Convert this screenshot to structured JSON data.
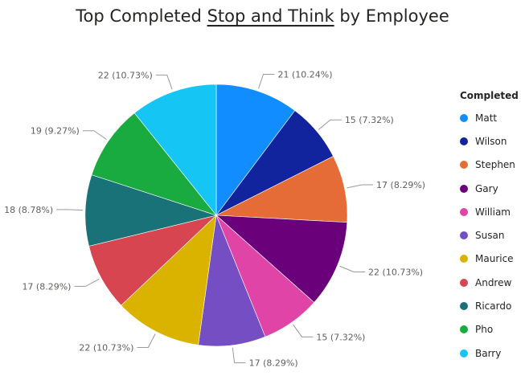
{
  "title": {
    "prefix": "Top Completed",
    "emphasis": "Stop and Think",
    "suffix": "by Employee"
  },
  "chart_data": {
    "type": "pie",
    "title": "Top Completed Stop and Think by Employee",
    "legend_title": "Completed",
    "legend_position": "right",
    "slices": [
      {
        "name": "Matt",
        "value": 21,
        "label": "21 (10.24%)",
        "color": "#118DFF"
      },
      {
        "name": "Wilson",
        "value": 15,
        "label": "15 (7.32%)",
        "color": "#12239E"
      },
      {
        "name": "Stephen",
        "value": 17,
        "label": "17 (8.29%)",
        "color": "#E66C37"
      },
      {
        "name": "Gary",
        "value": 22,
        "label": "22 (10.73%)",
        "color": "#6B007B"
      },
      {
        "name": "William",
        "value": 15,
        "label": "15 (7.32%)",
        "color": "#E044A7"
      },
      {
        "name": "Susan",
        "value": 17,
        "label": "17 (8.29%)",
        "color": "#744EC2"
      },
      {
        "name": "Maurice",
        "value": 22,
        "label": "22 (10.73%)",
        "color": "#D9B300"
      },
      {
        "name": "Andrew",
        "value": 17,
        "label": "17 (8.29%)",
        "color": "#D64550"
      },
      {
        "name": "Ricardo",
        "value": 18,
        "label": "18 (8.78%)",
        "color": "#197278"
      },
      {
        "name": "Pho",
        "value": 19,
        "label": "19 (9.27%)",
        "color": "#1AAB40"
      },
      {
        "name": "Barry",
        "value": 22,
        "label": "22 (10.73%)",
        "color": "#15C6F4"
      }
    ]
  }
}
